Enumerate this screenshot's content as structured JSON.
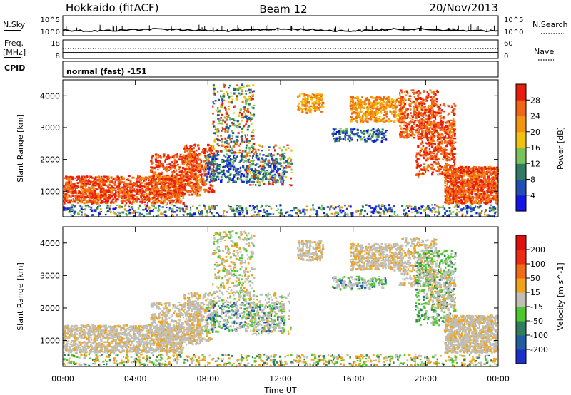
{
  "header": {
    "radar": "Hokkaido (fitACF)",
    "beam": "Beam 12",
    "date": "20/Nov/2013"
  },
  "strip": {
    "nsky_label": "N.Sky",
    "nsearch_label": "N.Search",
    "noise_ticks": [
      "10^5",
      "10^0"
    ],
    "freq_label": "Freq.",
    "freq_unit": "[MHz]",
    "freq_ticks": [
      "18",
      "8"
    ],
    "nave_label": "Nave",
    "nave_ticks": [
      "60",
      "0"
    ],
    "cpid_label": "CPID",
    "cpid_value": "normal (fast) -151"
  },
  "chart_data": [
    {
      "type": "heatmap",
      "name": "power",
      "title": "",
      "xlabel": "Time UT",
      "ylabel": "Slant Range [km]",
      "xlim": [
        0,
        24
      ],
      "ylim": [
        200,
        4500
      ],
      "x_tick_labels": [
        "00:00",
        "04:00",
        "08:00",
        "12:00",
        "16:00",
        "20:00",
        "00:00"
      ],
      "y_ticks": [
        1000,
        2000,
        3000,
        4000
      ],
      "colorbar": {
        "label": "Power [dB]",
        "ticks": [
          4,
          8,
          12,
          16,
          20,
          24,
          28
        ],
        "colors": [
          "#1515e8",
          "#1f4fb4",
          "#2f7c62",
          "#7ac35a",
          "#f0c20e",
          "#f39511",
          "#f16515",
          "#e81d0c"
        ]
      }
    },
    {
      "type": "heatmap",
      "name": "velocity",
      "title": "",
      "xlabel": "Time UT",
      "ylabel": "Slant Range [km]",
      "xlim": [
        0,
        24
      ],
      "ylim": [
        200,
        4500
      ],
      "x_tick_labels": [
        "00:00",
        "04:00",
        "08:00",
        "12:00",
        "16:00",
        "20:00",
        "00:00"
      ],
      "y_ticks": [
        1000,
        2000,
        3000,
        4000
      ],
      "colorbar": {
        "label": "Velocity [m s^-1]",
        "ticks": [
          200,
          100,
          50,
          15,
          -15,
          -50,
          -100,
          -200
        ],
        "colors": [
          "#1d2fc9",
          "#1f5ea0",
          "#2e7d5c",
          "#4cc82c",
          "#bfbfb8",
          "#f0a31a",
          "#f16a14",
          "#ee2a10",
          "#e10e0e"
        ]
      }
    }
  ]
}
